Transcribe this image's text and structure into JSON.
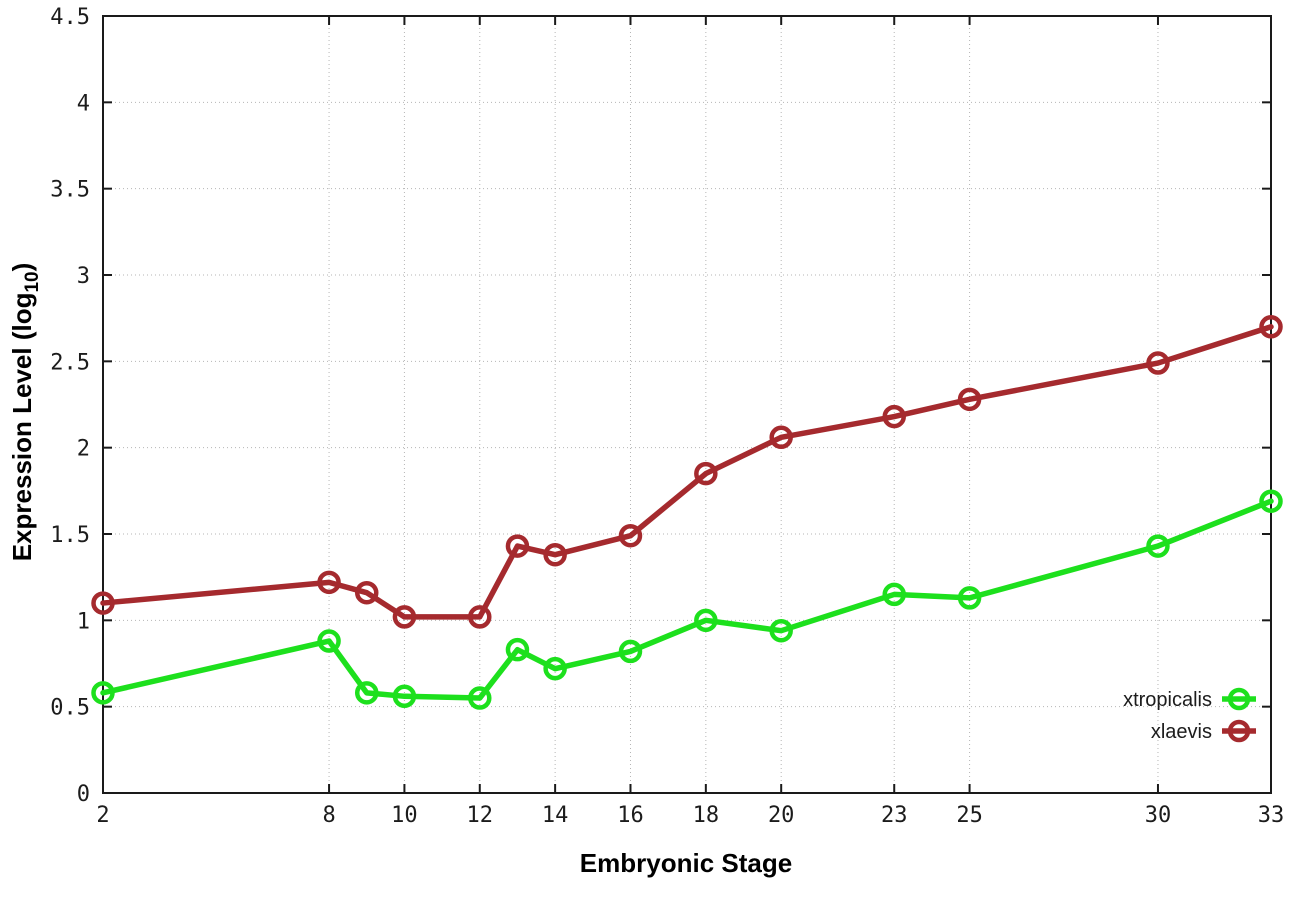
{
  "chart_data": {
    "type": "line",
    "title": "",
    "xlabel": "Embryonic Stage",
    "ylabel_prefix": "Expression Level (log",
    "ylabel_sub": "10",
    "ylabel_suffix": ")",
    "x": [
      2,
      8,
      9,
      10,
      12,
      13,
      14,
      16,
      18,
      20,
      23,
      25,
      30,
      33
    ],
    "xticks": [
      2,
      8,
      10,
      12,
      14,
      16,
      18,
      20,
      23,
      25,
      30,
      33
    ],
    "yticks": [
      0,
      0.5,
      1,
      1.5,
      2,
      2.5,
      3,
      3.5,
      4,
      4.5
    ],
    "xlim": [
      2,
      33
    ],
    "ylim": [
      0,
      4.5
    ],
    "grid": true,
    "legend_position": "inside-bottom-right",
    "series": [
      {
        "name": "xtropicalis",
        "color": "#1de01d",
        "marker": "open-circle",
        "values": [
          0.58,
          0.88,
          0.58,
          0.56,
          0.55,
          0.83,
          0.72,
          0.82,
          1.0,
          0.94,
          1.15,
          1.13,
          1.43,
          1.69
        ]
      },
      {
        "name": "xlaevis",
        "color": "#a52a2e",
        "marker": "open-circle",
        "values": [
          1.1,
          1.22,
          1.16,
          1.02,
          1.02,
          1.43,
          1.38,
          1.49,
          1.85,
          2.06,
          2.18,
          2.28,
          2.49,
          2.7
        ]
      }
    ],
    "axis_color": "#1a1a1a",
    "grid_color": "#b5b5b5",
    "background_color": "#ffffff"
  }
}
